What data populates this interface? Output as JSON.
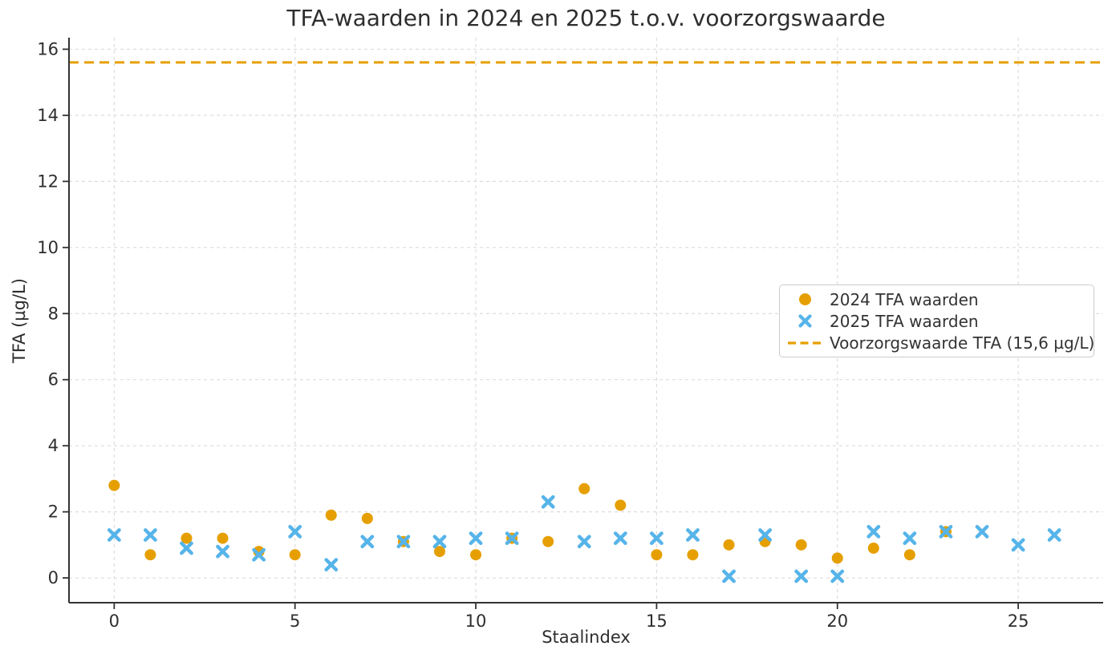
{
  "chart_data": {
    "type": "scatter",
    "title": "TFA-waarden in 2024 en 2025 t.o.v. voorzorgswaarde",
    "xlabel": "Staalindex",
    "ylabel": "TFA (µg/L)",
    "xlim": [
      -1.25,
      27.35
    ],
    "ylim": [
      -0.75,
      16.35
    ],
    "x_ticks": [
      0,
      5,
      10,
      15,
      20,
      25
    ],
    "y_ticks": [
      0,
      2,
      4,
      6,
      8,
      10,
      12,
      14,
      16
    ],
    "grid": true,
    "grid_color": "#dcdcdc",
    "legend_position": "center right",
    "series": [
      {
        "name": "2024 TFA waarden",
        "marker": "circle",
        "color": "#E69F00",
        "x": [
          0,
          1,
          2,
          3,
          4,
          5,
          6,
          7,
          8,
          9,
          10,
          11,
          12,
          13,
          14,
          15,
          16,
          17,
          18,
          19,
          20,
          21,
          22,
          23
        ],
        "y": [
          2.8,
          0.7,
          1.2,
          1.2,
          0.8,
          0.7,
          1.9,
          1.8,
          1.1,
          0.8,
          0.7,
          1.2,
          1.1,
          2.7,
          2.2,
          0.7,
          0.7,
          1.0,
          1.1,
          1.0,
          0.6,
          0.9,
          0.7,
          1.4
        ]
      },
      {
        "name": "2025 TFA waarden",
        "marker": "x",
        "color": "#56B4E9",
        "x": [
          0,
          1,
          2,
          3,
          4,
          5,
          6,
          7,
          8,
          9,
          10,
          11,
          12,
          13,
          14,
          15,
          16,
          17,
          18,
          19,
          20,
          21,
          22,
          23,
          24,
          25,
          26
        ],
        "y": [
          1.3,
          1.3,
          0.9,
          0.8,
          0.7,
          1.4,
          0.4,
          1.1,
          1.1,
          1.1,
          1.2,
          1.2,
          2.3,
          1.1,
          1.2,
          1.2,
          1.3,
          0.05,
          1.3,
          0.05,
          0.05,
          1.4,
          1.2,
          1.4,
          1.4,
          1.0,
          1.3
        ]
      }
    ],
    "threshold_line": {
      "label": "Voorzorgswaarde TFA (15,6 µg/L)",
      "value": 15.6,
      "color": "#E69F00",
      "style": "dashed"
    }
  }
}
